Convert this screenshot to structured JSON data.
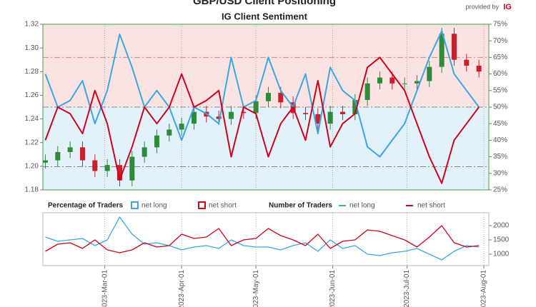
{
  "chart_data": [
    {
      "type": "candlestick",
      "title": "GBP/USD Client Positioning",
      "subtitle": "IG Client Sentiment",
      "brand": "provided by",
      "brand_mark": "IG",
      "legend_title": "Percentage of Traders",
      "x": [
        "2023-02-05",
        "2023-02-10",
        "2023-02-15",
        "2023-02-20",
        "2023-02-25",
        "2023-03-02",
        "2023-03-07",
        "2023-03-12",
        "2023-03-17",
        "2023-03-22",
        "2023-03-27",
        "2023-04-01",
        "2023-04-06",
        "2023-04-11",
        "2023-04-16",
        "2023-04-21",
        "2023-04-26",
        "2023-05-01",
        "2023-05-06",
        "2023-05-11",
        "2023-05-16",
        "2023-05-21",
        "2023-05-26",
        "2023-05-31",
        "2023-06-05",
        "2023-06-10",
        "2023-06-15",
        "2023-06-20",
        "2023-06-25",
        "2023-06-30",
        "2023-07-05",
        "2023-07-10",
        "2023-07-15",
        "2023-07-20",
        "2023-07-25",
        "2023-07-30"
      ],
      "open": [
        1.203,
        1.205,
        1.212,
        1.216,
        1.205,
        1.196,
        1.201,
        1.188,
        1.208,
        1.216,
        1.226,
        1.231,
        1.236,
        1.246,
        1.242,
        1.24,
        1.246,
        1.245,
        1.255,
        1.262,
        1.254,
        1.245,
        1.244,
        1.236,
        1.246,
        1.244,
        1.256,
        1.27,
        1.275,
        1.27,
        1.27,
        1.272,
        1.284,
        1.312,
        1.29,
        1.285
      ],
      "high": [
        1.21,
        1.217,
        1.221,
        1.221,
        1.21,
        1.206,
        1.206,
        1.213,
        1.221,
        1.231,
        1.236,
        1.241,
        1.251,
        1.251,
        1.247,
        1.251,
        1.251,
        1.26,
        1.267,
        1.267,
        1.259,
        1.25,
        1.249,
        1.251,
        1.251,
        1.261,
        1.275,
        1.28,
        1.28,
        1.275,
        1.277,
        1.289,
        1.317,
        1.317,
        1.295,
        1.29
      ],
      "low": [
        1.198,
        1.2,
        1.207,
        1.2,
        1.191,
        1.191,
        1.183,
        1.183,
        1.203,
        1.211,
        1.221,
        1.226,
        1.231,
        1.237,
        1.235,
        1.235,
        1.24,
        1.24,
        1.25,
        1.249,
        1.24,
        1.239,
        1.231,
        1.231,
        1.239,
        1.239,
        1.251,
        1.265,
        1.265,
        1.265,
        1.265,
        1.267,
        1.279,
        1.285,
        1.28,
        1.275
      ],
      "close": [
        1.205,
        1.212,
        1.216,
        1.205,
        1.196,
        1.201,
        1.188,
        1.208,
        1.216,
        1.226,
        1.231,
        1.236,
        1.246,
        1.242,
        1.24,
        1.246,
        1.245,
        1.255,
        1.262,
        1.254,
        1.245,
        1.244,
        1.236,
        1.246,
        1.244,
        1.256,
        1.27,
        1.275,
        1.27,
        1.27,
        1.272,
        1.284,
        1.312,
        1.29,
        1.285,
        1.28
      ],
      "up_color": "#2e8b3a",
      "down_color": "#c8202c",
      "series": [
        {
          "name": "net long",
          "color": "#3aa6e6",
          "axis": "y2",
          "values": [
            60,
            50,
            52,
            58,
            45,
            55,
            72,
            62,
            50,
            55,
            50,
            40,
            50,
            48,
            45,
            65,
            50,
            52,
            65,
            55,
            50,
            60,
            42,
            62,
            55,
            52,
            38,
            35,
            40,
            45,
            55,
            65,
            73,
            60,
            55,
            50
          ]
        },
        {
          "name": "net short",
          "color": "#d0021b",
          "axis": "y2",
          "values": [
            40,
            50,
            48,
            42,
            55,
            45,
            28,
            38,
            50,
            45,
            50,
            60,
            50,
            52,
            55,
            35,
            50,
            48,
            35,
            45,
            50,
            40,
            58,
            38,
            45,
            48,
            62,
            65,
            60,
            55,
            45,
            35,
            27,
            40,
            45,
            50
          ]
        }
      ],
      "reference_lines": [
        65,
        50,
        32
      ],
      "xlim": [
        "2023-02-04",
        "2023-08-03"
      ],
      "xticks": [
        "2023-03-01",
        "2023-04-01",
        "2023-05-01",
        "2023-06-01",
        "2023-07-01",
        "2023-08-01"
      ],
      "ylim": [
        1.18,
        1.32
      ],
      "yticks": [
        1.18,
        {
          "value": 1.2,
          "label": "1.20"
        },
        1.22,
        1.24,
        1.26,
        1.28,
        {
          "value": 1.3,
          "label": "1.30"
        },
        1.32
      ],
      "y2lim": [
        25,
        75
      ],
      "y2ticks": [
        {
          "value": 25,
          "label": "25%"
        },
        {
          "value": 30,
          "label": "30%"
        },
        {
          "value": 35,
          "label": "35%"
        },
        {
          "value": 40,
          "label": "40%"
        },
        {
          "value": 45,
          "label": "45%"
        },
        {
          "value": 50,
          "label": "50%"
        },
        {
          "value": 55,
          "label": "55%"
        },
        {
          "value": 60,
          "label": "60%"
        },
        {
          "value": 65,
          "label": "65%"
        },
        {
          "value": 70,
          "label": "70%"
        },
        {
          "value": 75,
          "label": "75%"
        }
      ],
      "grid": true
    },
    {
      "type": "line",
      "legend_title": "Number of Traders",
      "x": [
        "2023-02-05",
        "2023-02-10",
        "2023-02-15",
        "2023-02-20",
        "2023-02-25",
        "2023-03-02",
        "2023-03-07",
        "2023-03-12",
        "2023-03-17",
        "2023-03-22",
        "2023-03-27",
        "2023-04-01",
        "2023-04-06",
        "2023-04-11",
        "2023-04-16",
        "2023-04-21",
        "2023-04-26",
        "2023-05-01",
        "2023-05-06",
        "2023-05-11",
        "2023-05-16",
        "2023-05-21",
        "2023-05-26",
        "2023-05-31",
        "2023-06-05",
        "2023-06-10",
        "2023-06-15",
        "2023-06-20",
        "2023-06-25",
        "2023-06-30",
        "2023-07-05",
        "2023-07-10",
        "2023-07-15",
        "2023-07-20",
        "2023-07-25",
        "2023-07-30"
      ],
      "series": [
        {
          "name": "net long",
          "color": "#3aa6e6",
          "values": [
            1600,
            1450,
            1500,
            1550,
            1300,
            1500,
            2300,
            1700,
            1350,
            1400,
            1300,
            1150,
            1250,
            1300,
            1200,
            1500,
            1300,
            1250,
            1250,
            1150,
            1300,
            1400,
            1100,
            1500,
            1200,
            1300,
            1000,
            950,
            1050,
            1100,
            1200,
            1000,
            800,
            1100,
            1300,
            1250
          ]
        },
        {
          "name": "net short",
          "color": "#d0021b",
          "values": [
            1100,
            1350,
            1400,
            1200,
            1500,
            1150,
            1050,
            1150,
            1400,
            1250,
            1300,
            1700,
            1550,
            1600,
            1900,
            1300,
            1500,
            1550,
            1900,
            1650,
            1500,
            1300,
            1700,
            1200,
            1450,
            1500,
            1850,
            1800,
            1650,
            1500,
            1250,
            1600,
            2000,
            1400,
            1250,
            1300
          ]
        }
      ],
      "xlim": [
        "2023-02-04",
        "2023-08-03"
      ],
      "xticks": [
        {
          "value": "2023-03-01",
          "label": "2023-Mar-01"
        },
        {
          "value": "2023-04-01",
          "label": "2023-Apr-01"
        },
        {
          "value": "2023-05-01",
          "label": "2023-May-01"
        },
        {
          "value": "2023-06-01",
          "label": "2023-Jun-01"
        },
        {
          "value": "2023-07-01",
          "label": "2023-Jul-01"
        },
        {
          "value": "2023-08-01",
          "label": "2023-Aug-01"
        }
      ],
      "ylim": [
        600,
        2450
      ],
      "yticks": [
        1000,
        1500,
        2000
      ],
      "grid": true
    }
  ]
}
